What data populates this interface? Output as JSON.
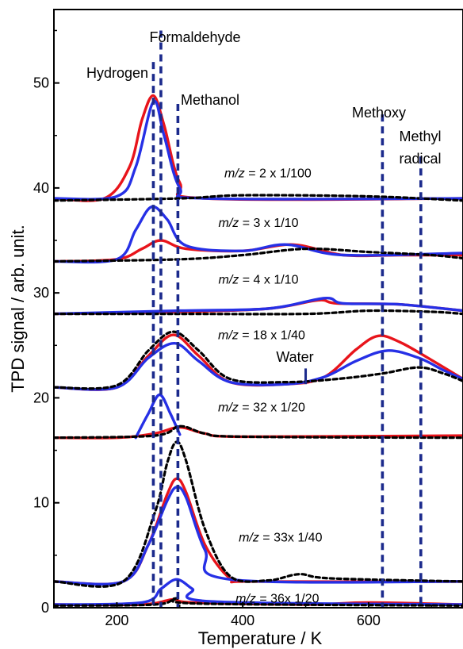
{
  "chart_data": {
    "type": "line",
    "xlabel": "Temperature / K",
    "ylabel": "TPD signal / arb. unit.",
    "xlim": [
      100,
      750
    ],
    "ylim": [
      0,
      57
    ],
    "x_ticks": [
      200,
      400,
      600
    ],
    "y_ticks": [
      0,
      10,
      20,
      30,
      40,
      50
    ],
    "grid": false,
    "legend": "none",
    "colors": {
      "red": "#e8141b",
      "blue": "#2630e6",
      "dashed": "#000000",
      "marker": "#1b2a8c"
    },
    "annotations": [
      "Formaldehyde",
      "Hydrogen",
      "Methanol",
      "Methoxy",
      "Methyl",
      "radical",
      "Water"
    ],
    "vertical_markers": [
      {
        "x": 258,
        "y_top": 52
      },
      {
        "x": 270,
        "y_top": 55
      },
      {
        "x": 297,
        "y_top": 48
      },
      {
        "x": 622,
        "y_top": 47
      },
      {
        "x": 683,
        "y_top": 43
      }
    ],
    "mz_labels": [
      {
        "mz": "m/z",
        "rest": " = 2 x 1/100",
        "x": 440,
        "y": 41
      },
      {
        "mz": "m/z",
        "rest": " = 3 x 1/10",
        "x": 425,
        "y": 36.3
      },
      {
        "mz": "m/z",
        "rest": " = 4 x 1/10",
        "x": 425,
        "y": 30.9
      },
      {
        "mz": "m/z",
        "rest": " = 18 x 1/40",
        "x": 430,
        "y": 25.6
      },
      {
        "mz": "m/z",
        "rest": " = 32 x 1/20",
        "x": 430,
        "y": 18.7
      },
      {
        "mz": "m/z",
        "rest": " = 33x 1/40",
        "x": 460,
        "y": 6.3
      },
      {
        "mz": "m/z",
        "rest": " = 36x 1/20",
        "x": 455,
        "y": 0.5
      }
    ],
    "series": [
      {
        "color": "red",
        "style": "solid",
        "points": [
          [
            100,
            39
          ],
          [
            180,
            39
          ],
          [
            220,
            42
          ],
          [
            240,
            46.5
          ],
          [
            258,
            48.8
          ],
          [
            275,
            46
          ],
          [
            300,
            40.5
          ],
          [
            340,
            39
          ],
          [
            750,
            39
          ]
        ]
      },
      {
        "color": "blue",
        "style": "solid",
        "points": [
          [
            100,
            39
          ],
          [
            200,
            39.2
          ],
          [
            230,
            42
          ],
          [
            258,
            48.2
          ],
          [
            275,
            45
          ],
          [
            300,
            40
          ],
          [
            340,
            39
          ],
          [
            750,
            39
          ]
        ]
      },
      {
        "color": "dashed",
        "style": "dashed",
        "points": [
          [
            100,
            38.8
          ],
          [
            300,
            39
          ],
          [
            400,
            39.3
          ],
          [
            600,
            39.2
          ],
          [
            750,
            38.8
          ]
        ]
      },
      {
        "color": "red",
        "style": "solid",
        "points": [
          [
            100,
            33
          ],
          [
            200,
            33.2
          ],
          [
            240,
            34.2
          ],
          [
            270,
            35
          ],
          [
            310,
            34.2
          ],
          [
            400,
            34
          ],
          [
            480,
            34.6
          ],
          [
            560,
            33.6
          ],
          [
            650,
            33.6
          ],
          [
            750,
            33.6
          ]
        ]
      },
      {
        "color": "blue",
        "style": "solid",
        "points": [
          [
            100,
            33
          ],
          [
            200,
            33.2
          ],
          [
            230,
            36
          ],
          [
            255,
            38.2
          ],
          [
            280,
            37
          ],
          [
            310,
            34.5
          ],
          [
            400,
            34
          ],
          [
            470,
            34.6
          ],
          [
            560,
            33.6
          ],
          [
            750,
            33.8
          ]
        ]
      },
      {
        "color": "dashed",
        "style": "dashed",
        "points": [
          [
            100,
            33
          ],
          [
            300,
            33.2
          ],
          [
            400,
            33.6
          ],
          [
            500,
            34.2
          ],
          [
            600,
            33.9
          ],
          [
            700,
            33.6
          ],
          [
            750,
            33.3
          ]
        ]
      },
      {
        "color": "red",
        "style": "solid",
        "points": [
          [
            100,
            28
          ],
          [
            300,
            28.2
          ],
          [
            440,
            28.5
          ],
          [
            520,
            29.3
          ],
          [
            550,
            29
          ],
          [
            650,
            28.9
          ],
          [
            750,
            28.3
          ]
        ]
      },
      {
        "color": "blue",
        "style": "solid",
        "points": [
          [
            100,
            28
          ],
          [
            300,
            28.3
          ],
          [
            440,
            28.5
          ],
          [
            530,
            29.5
          ],
          [
            560,
            29
          ],
          [
            650,
            28.9
          ],
          [
            750,
            28.3
          ]
        ]
      },
      {
        "color": "dashed",
        "style": "dashed",
        "points": [
          [
            100,
            28
          ],
          [
            300,
            28
          ],
          [
            500,
            28
          ],
          [
            600,
            28.3
          ],
          [
            700,
            28.2
          ],
          [
            750,
            28
          ]
        ]
      },
      {
        "color": "red",
        "style": "solid",
        "points": [
          [
            100,
            21
          ],
          [
            200,
            21
          ],
          [
            250,
            24
          ],
          [
            290,
            26
          ],
          [
            330,
            24
          ],
          [
            380,
            21.5
          ],
          [
            470,
            21.3
          ],
          [
            530,
            22
          ],
          [
            580,
            24.6
          ],
          [
            615,
            25.9
          ],
          [
            650,
            25.3
          ],
          [
            700,
            23.6
          ],
          [
            750,
            21.8
          ]
        ]
      },
      {
        "color": "blue",
        "style": "solid",
        "points": [
          [
            100,
            21
          ],
          [
            200,
            21
          ],
          [
            250,
            23.8
          ],
          [
            292,
            25.2
          ],
          [
            330,
            23.5
          ],
          [
            380,
            21.5
          ],
          [
            470,
            21.3
          ],
          [
            530,
            22
          ],
          [
            580,
            23.5
          ],
          [
            630,
            24.5
          ],
          [
            680,
            23.8
          ],
          [
            720,
            22.6
          ],
          [
            750,
            21.8
          ]
        ]
      },
      {
        "color": "dashed",
        "style": "dashed",
        "points": [
          [
            100,
            21
          ],
          [
            200,
            21.2
          ],
          [
            250,
            24.5
          ],
          [
            290,
            26.3
          ],
          [
            330,
            24.5
          ],
          [
            380,
            21.8
          ],
          [
            470,
            21.5
          ],
          [
            550,
            21.8
          ],
          [
            620,
            22.3
          ],
          [
            680,
            22.9
          ],
          [
            720,
            22.3
          ],
          [
            750,
            21.6
          ]
        ]
      },
      {
        "color": "red",
        "style": "solid",
        "points": [
          [
            100,
            16.2
          ],
          [
            200,
            16.2
          ],
          [
            260,
            16.6
          ],
          [
            300,
            17.2
          ],
          [
            340,
            16.6
          ],
          [
            400,
            16.3
          ],
          [
            750,
            16.4
          ]
        ]
      },
      {
        "color": "blue",
        "style": "solid",
        "points": [
          [
            230,
            16.2
          ],
          [
            250,
            18.5
          ],
          [
            268,
            20.3
          ],
          [
            285,
            18.5
          ],
          [
            300,
            16.5
          ]
        ]
      },
      {
        "color": "dashed",
        "style": "dashed",
        "points": [
          [
            100,
            16.2
          ],
          [
            260,
            16.4
          ],
          [
            300,
            17.3
          ],
          [
            340,
            16.6
          ],
          [
            400,
            16.3
          ],
          [
            750,
            16.2
          ]
        ]
      },
      {
        "color": "red",
        "style": "solid",
        "points": [
          [
            100,
            2.5
          ],
          [
            210,
            2.5
          ],
          [
            250,
            6
          ],
          [
            280,
            10.8
          ],
          [
            295,
            12.3
          ],
          [
            310,
            11
          ],
          [
            340,
            6
          ],
          [
            380,
            2.8
          ],
          [
            420,
            2.5
          ],
          [
            750,
            2.5
          ]
        ]
      },
      {
        "color": "blue",
        "style": "solid",
        "points": [
          [
            100,
            2.5
          ],
          [
            210,
            2.5
          ],
          [
            250,
            6
          ],
          [
            280,
            10.2
          ],
          [
            295,
            11.5
          ],
          [
            310,
            10.5
          ],
          [
            340,
            5.5
          ],
          [
            380,
            2.7
          ],
          [
            750,
            2.5
          ]
        ]
      },
      {
        "color": "dashed",
        "style": "dashed",
        "points": [
          [
            100,
            2.5
          ],
          [
            210,
            2.5
          ],
          [
            260,
            9
          ],
          [
            280,
            13.8
          ],
          [
            295,
            15.8
          ],
          [
            310,
            14
          ],
          [
            340,
            7.5
          ],
          [
            380,
            3
          ],
          [
            440,
            2.6
          ],
          [
            490,
            3.2
          ],
          [
            540,
            2.8
          ],
          [
            750,
            2.5
          ]
        ]
      },
      {
        "color": "red",
        "style": "solid",
        "points": [
          [
            100,
            0.3
          ],
          [
            240,
            0.3
          ],
          [
            290,
            0.8
          ],
          [
            320,
            0.5
          ],
          [
            500,
            0.3
          ],
          [
            600,
            0.5
          ],
          [
            750,
            0.3
          ]
        ]
      },
      {
        "color": "blue",
        "style": "solid",
        "points": [
          [
            100,
            0.3
          ],
          [
            240,
            0.5
          ],
          [
            270,
            1.8
          ],
          [
            295,
            2.7
          ],
          [
            320,
            1.8
          ],
          [
            350,
            0.6
          ],
          [
            750,
            0.3
          ]
        ]
      },
      {
        "color": "dashed",
        "style": "dashed",
        "points": [
          [
            100,
            0.2
          ],
          [
            260,
            0.3
          ],
          [
            295,
            0.9
          ],
          [
            330,
            0.4
          ],
          [
            750,
            0.2
          ]
        ]
      }
    ]
  }
}
